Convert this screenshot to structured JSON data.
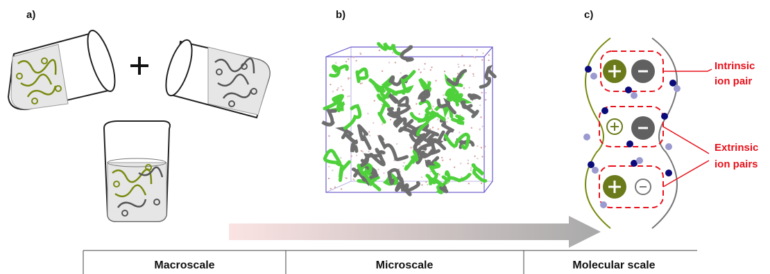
{
  "panels": [
    {
      "label": "a)"
    },
    {
      "label": "b)"
    },
    {
      "label": "c)"
    }
  ],
  "annotations": [
    {
      "lines": [
        "Intrinsic",
        "ion pair"
      ]
    },
    {
      "lines": [
        "Extrinsic",
        "ion pairs"
      ]
    }
  ],
  "table": {
    "header": [
      "Macroscale",
      "Microscale",
      "Molecular scale"
    ]
  }
}
